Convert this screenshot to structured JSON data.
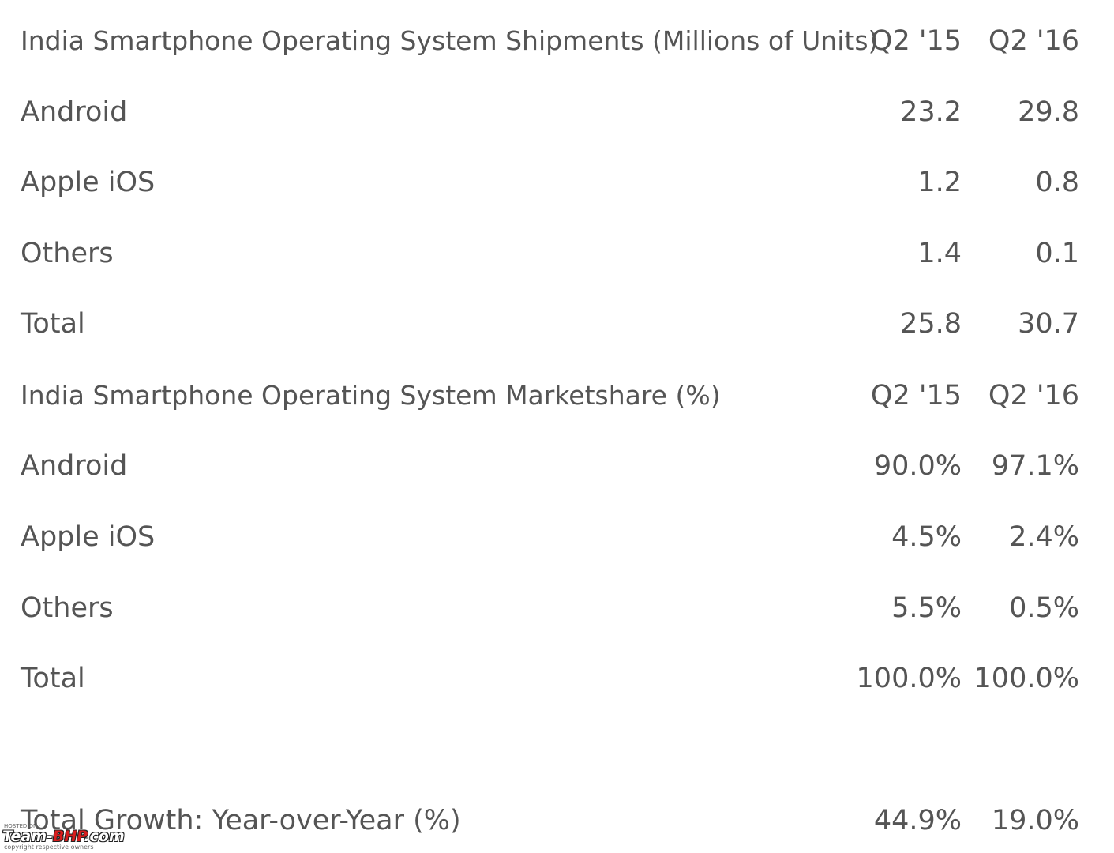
{
  "shipments": {
    "title": "India Smartphone Operating System Shipments (Millions of Units)",
    "col_q215": "Q2 '15",
    "col_q216": "Q2 '16",
    "rows": [
      {
        "label": "Android",
        "q215": "23.2",
        "q216": "29.8"
      },
      {
        "label": "Apple iOS",
        "q215": "1.2",
        "q216": "0.8"
      },
      {
        "label": "Others",
        "q215": "1.4",
        "q216": "0.1"
      },
      {
        "label": "Total",
        "q215": "25.8",
        "q216": "30.7"
      }
    ]
  },
  "marketshare": {
    "title": "India Smartphone Operating System Marketshare (%)",
    "col_q215": "Q2 '15",
    "col_q216": "Q2 '16",
    "rows": [
      {
        "label": "Android",
        "q215": "90.0%",
        "q216": "97.1%"
      },
      {
        "label": "Apple iOS",
        "q215": "4.5%",
        "q216": "2.4%"
      },
      {
        "label": "Others",
        "q215": "5.5%",
        "q216": "0.5%"
      },
      {
        "label": "Total",
        "q215": "100.0%",
        "q216": "100.0%"
      }
    ]
  },
  "growth": {
    "label": "Total Growth: Year-over-Year (%)",
    "q215": "44.9%",
    "q216": "19.0%"
  },
  "watermark": {
    "hosted": "HOSTED ON :",
    "brand_a": "Team-",
    "brand_b": "BHP",
    "brand_c": ".com",
    "copyright": "copyright respective owners"
  }
}
